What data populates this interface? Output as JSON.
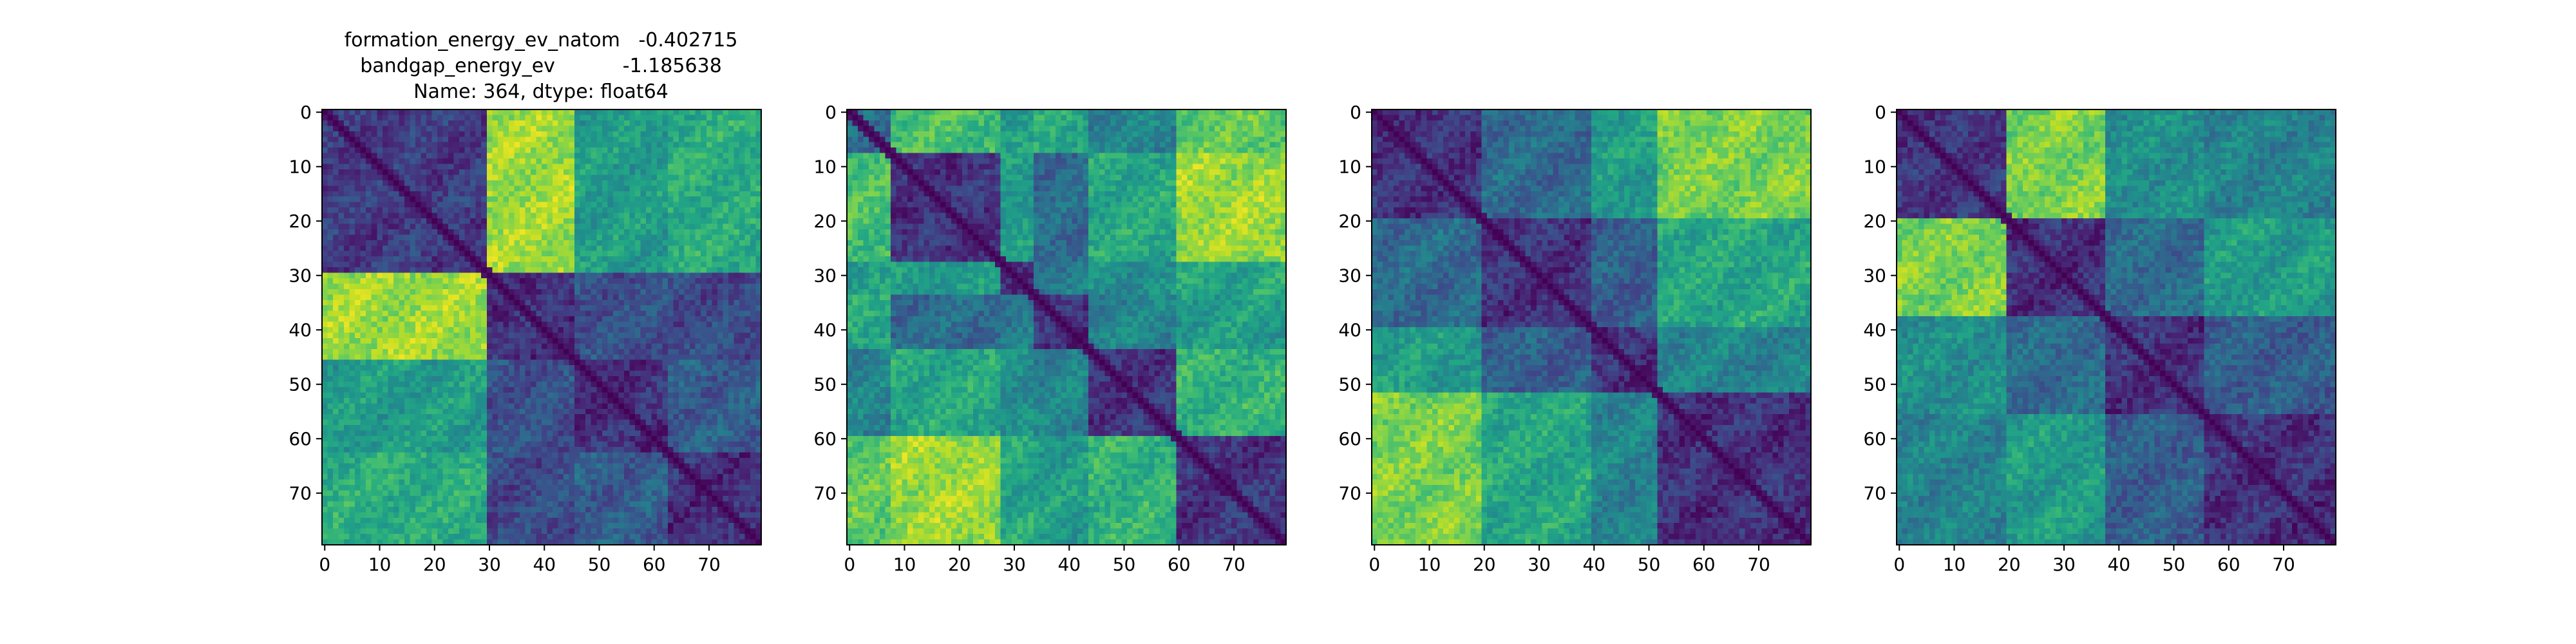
{
  "figure_title": {
    "line1": "formation_energy_ev_natom   -0.402715",
    "line2": "bandgap_energy_ev           -1.185638",
    "line3": "Name: 364, dtype: float64"
  },
  "chart_data": [
    {
      "type": "heatmap",
      "panel": 1,
      "colormap": "viridis",
      "size": 80,
      "x_ticks": [
        0,
        10,
        20,
        30,
        40,
        50,
        60,
        70
      ],
      "y_ticks": [
        0,
        10,
        20,
        30,
        40,
        50,
        60,
        70
      ],
      "xlim": [
        0,
        79
      ],
      "ylim": [
        0,
        79
      ],
      "grid": false,
      "blocks": [
        0,
        30,
        46,
        63,
        80
      ],
      "block_values": [
        [
          0.18,
          0.85,
          0.55,
          0.62
        ],
        [
          0.85,
          0.14,
          0.25,
          0.22
        ],
        [
          0.55,
          0.25,
          0.14,
          0.3
        ],
        [
          0.62,
          0.22,
          0.3,
          0.14
        ]
      ]
    },
    {
      "type": "heatmap",
      "panel": 2,
      "colormap": "viridis",
      "size": 80,
      "x_ticks": [
        0,
        10,
        20,
        30,
        40,
        50,
        60,
        70
      ],
      "y_ticks": [
        0,
        10,
        20,
        30,
        40,
        50,
        60,
        70
      ],
      "xlim": [
        0,
        79
      ],
      "ylim": [
        0,
        79
      ],
      "grid": false,
      "blocks": [
        0,
        8,
        28,
        34,
        44,
        60,
        80
      ],
      "block_values": [
        [
          0.35,
          0.7,
          0.55,
          0.6,
          0.45,
          0.75
        ],
        [
          0.7,
          0.15,
          0.55,
          0.35,
          0.6,
          0.85
        ],
        [
          0.55,
          0.55,
          0.15,
          0.4,
          0.5,
          0.6
        ],
        [
          0.6,
          0.35,
          0.4,
          0.15,
          0.45,
          0.55
        ],
        [
          0.45,
          0.6,
          0.5,
          0.45,
          0.15,
          0.65
        ],
        [
          0.75,
          0.85,
          0.6,
          0.55,
          0.65,
          0.15
        ]
      ]
    },
    {
      "type": "heatmap",
      "panel": 3,
      "colormap": "viridis",
      "size": 80,
      "x_ticks": [
        0,
        10,
        20,
        30,
        40,
        50,
        60,
        70
      ],
      "y_ticks": [
        0,
        10,
        20,
        30,
        40,
        50,
        60,
        70
      ],
      "xlim": [
        0,
        79
      ],
      "ylim": [
        0,
        79
      ],
      "grid": false,
      "blocks": [
        0,
        20,
        40,
        52,
        80
      ],
      "block_values": [
        [
          0.15,
          0.35,
          0.55,
          0.8
        ],
        [
          0.35,
          0.14,
          0.3,
          0.6
        ],
        [
          0.55,
          0.3,
          0.14,
          0.45
        ],
        [
          0.8,
          0.6,
          0.45,
          0.14
        ]
      ]
    },
    {
      "type": "heatmap",
      "panel": 4,
      "colormap": "viridis",
      "size": 80,
      "x_ticks": [
        0,
        10,
        20,
        30,
        40,
        50,
        60,
        70
      ],
      "y_ticks": [
        0,
        10,
        20,
        30,
        40,
        50,
        60,
        70
      ],
      "xlim": [
        0,
        79
      ],
      "ylim": [
        0,
        79
      ],
      "grid": false,
      "blocks": [
        0,
        20,
        38,
        56,
        80
      ],
      "block_values": [
        [
          0.16,
          0.8,
          0.5,
          0.45
        ],
        [
          0.8,
          0.14,
          0.35,
          0.55
        ],
        [
          0.5,
          0.35,
          0.14,
          0.3
        ],
        [
          0.45,
          0.55,
          0.3,
          0.14
        ]
      ]
    }
  ]
}
